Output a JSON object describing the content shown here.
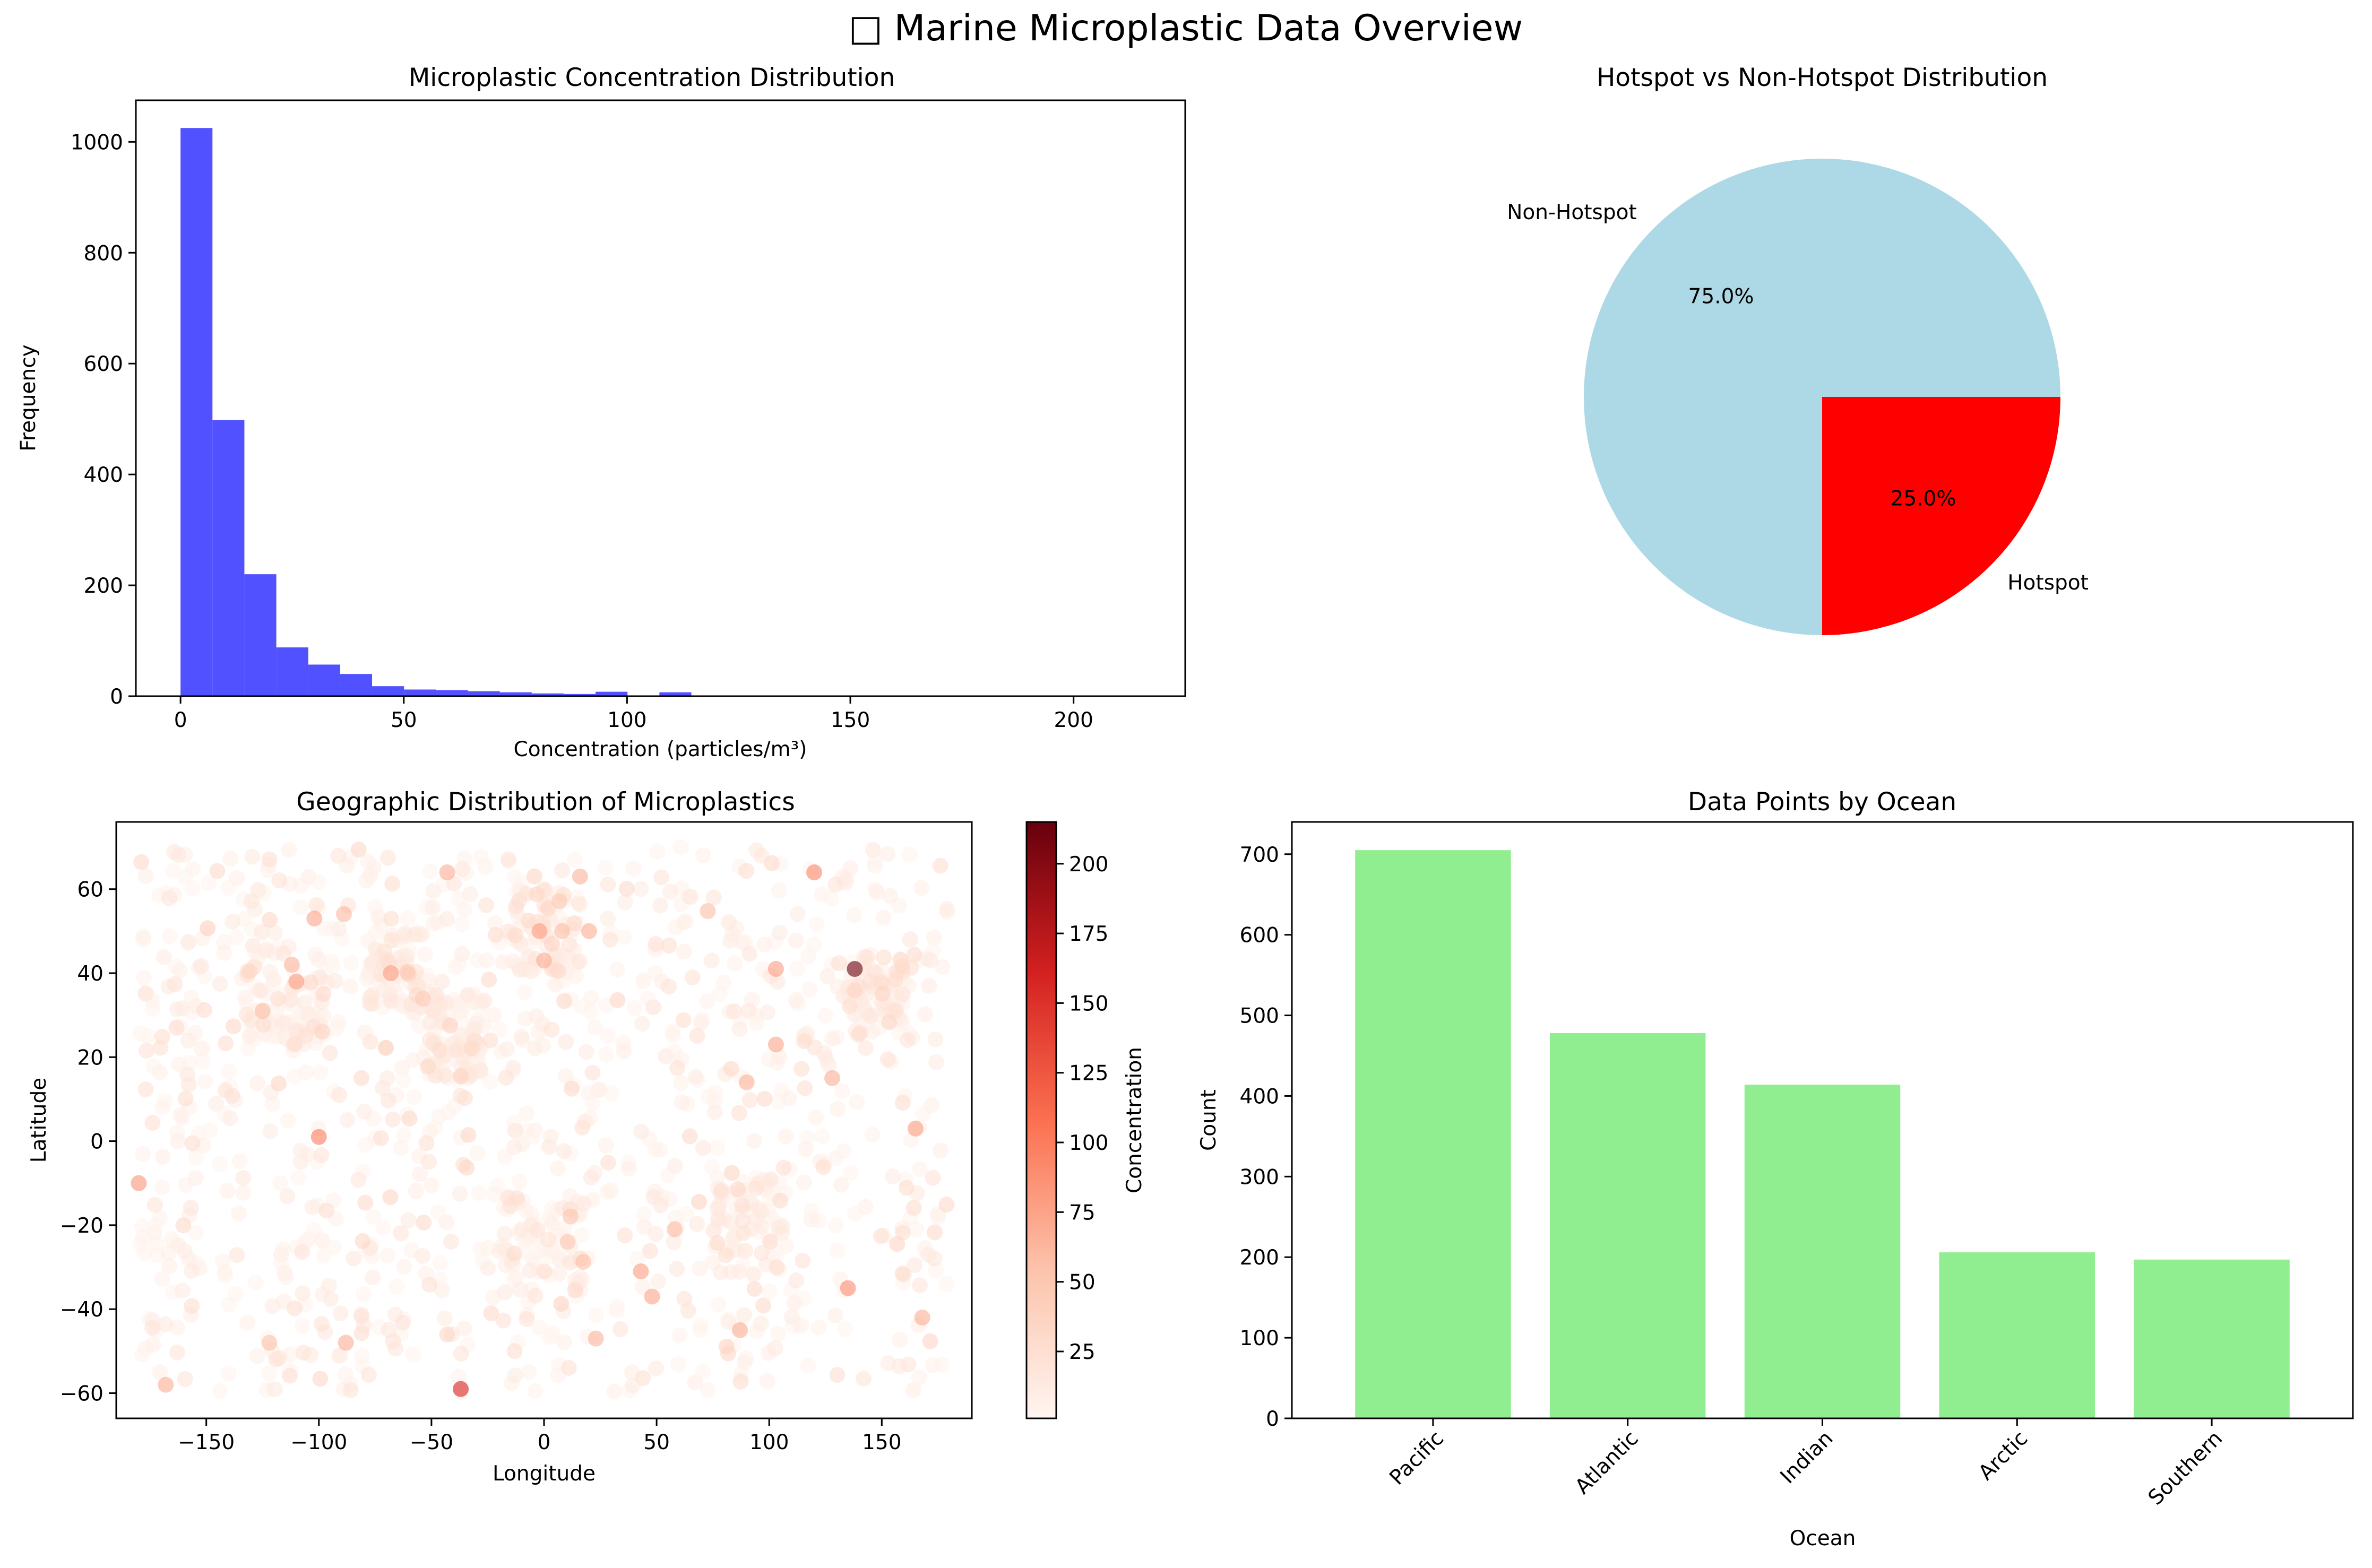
{
  "figure": {
    "suptitle": "□ Marine Microplastic Data Overview"
  },
  "chart_data": [
    {
      "type": "bar",
      "subtype": "histogram",
      "title": "Microplastic Concentration Distribution",
      "xlabel": "Concentration (particles/m³)",
      "ylabel": "Frequency",
      "xlim": [
        -10,
        225
      ],
      "ylim": [
        0,
        1075
      ],
      "xticks": [
        0,
        50,
        100,
        150,
        200
      ],
      "yticks": [
        0,
        200,
        400,
        600,
        800,
        1000
      ],
      "bin_width": 7.15,
      "bin_start": 0,
      "values": [
        1025,
        498,
        220,
        88,
        57,
        40,
        18,
        12,
        11,
        9,
        7,
        5,
        4,
        8,
        0,
        7,
        0,
        0,
        0,
        0,
        0,
        0,
        0,
        0,
        0,
        0,
        0,
        0,
        0,
        1
      ],
      "color": "#4444ff",
      "grid": false
    },
    {
      "type": "pie",
      "title": "Hotspot vs Non-Hotspot Distribution",
      "slices": [
        {
          "label": "Non-Hotspot",
          "value": 75.0,
          "pct_label": "75.0%",
          "color": "#add8e6"
        },
        {
          "label": "Hotspot",
          "value": 25.0,
          "pct_label": "25.0%",
          "color": "#ff0000"
        }
      ],
      "start_angle_deg": 0
    },
    {
      "type": "scatter",
      "title": "Geographic Distribution of Microplastics",
      "xlabel": "Longitude",
      "ylabel": "Latitude",
      "xlim": [
        -190,
        190
      ],
      "ylim": [
        -66,
        76
      ],
      "xticks": [
        -150,
        -100,
        -50,
        0,
        50,
        100,
        150
      ],
      "yticks": [
        -60,
        -40,
        -20,
        0,
        20,
        40,
        60
      ],
      "colorbar": {
        "label": "Concentration",
        "min": 1,
        "max": 215,
        "ticks": [
          25,
          50,
          75,
          100,
          125,
          150,
          175,
          200
        ],
        "colormap": "Reds"
      },
      "point_count": 1500,
      "points_sample": [
        {
          "x": -180,
          "y": -10,
          "c": 85
        },
        {
          "x": -168,
          "y": -58,
          "c": 70
        },
        {
          "x": -125,
          "y": 31,
          "c": 60
        },
        {
          "x": -122,
          "y": -48,
          "c": 55
        },
        {
          "x": -110,
          "y": 38,
          "c": 80
        },
        {
          "x": -112,
          "y": 42,
          "c": 65
        },
        {
          "x": -102,
          "y": 53,
          "c": 75
        },
        {
          "x": -100,
          "y": 1,
          "c": 100
        },
        {
          "x": -88,
          "y": -48,
          "c": 70
        },
        {
          "x": -68,
          "y": 40,
          "c": 80
        },
        {
          "x": -43,
          "y": 64,
          "c": 70
        },
        {
          "x": -37,
          "y": -59,
          "c": 160
        },
        {
          "x": -2,
          "y": 50,
          "c": 80
        },
        {
          "x": 0,
          "y": 43,
          "c": 70
        },
        {
          "x": 8,
          "y": 50,
          "c": 60
        },
        {
          "x": 16,
          "y": 63,
          "c": 65
        },
        {
          "x": 20,
          "y": 50,
          "c": 70
        },
        {
          "x": 23,
          "y": -47,
          "c": 65
        },
        {
          "x": 43,
          "y": -31,
          "c": 80
        },
        {
          "x": 48,
          "y": -37,
          "c": 75
        },
        {
          "x": 58,
          "y": -21,
          "c": 60
        },
        {
          "x": 87,
          "y": -45,
          "c": 70
        },
        {
          "x": 90,
          "y": 14,
          "c": 65
        },
        {
          "x": 103,
          "y": 41,
          "c": 80
        },
        {
          "x": 103,
          "y": 23,
          "c": 75
        },
        {
          "x": 120,
          "y": 64,
          "c": 95
        },
        {
          "x": 128,
          "y": 15,
          "c": 70
        },
        {
          "x": 135,
          "y": -35,
          "c": 90
        },
        {
          "x": 138,
          "y": 41,
          "c": 215
        },
        {
          "x": 165,
          "y": 3,
          "c": 80
        },
        {
          "x": 168,
          "y": -42,
          "c": 70
        }
      ]
    },
    {
      "type": "bar",
      "title": "Data Points by Ocean",
      "xlabel": "Ocean",
      "ylabel": "Count",
      "categories": [
        "Pacific",
        "Atlantic",
        "Indian",
        "Arctic",
        "Southern"
      ],
      "values": [
        705,
        478,
        414,
        206,
        197
      ],
      "ylim": [
        0,
        740
      ],
      "yticks": [
        0,
        100,
        200,
        300,
        400,
        500,
        600,
        700
      ],
      "color": "#90ee90",
      "xtick_rotation": 45,
      "grid": false
    }
  ]
}
